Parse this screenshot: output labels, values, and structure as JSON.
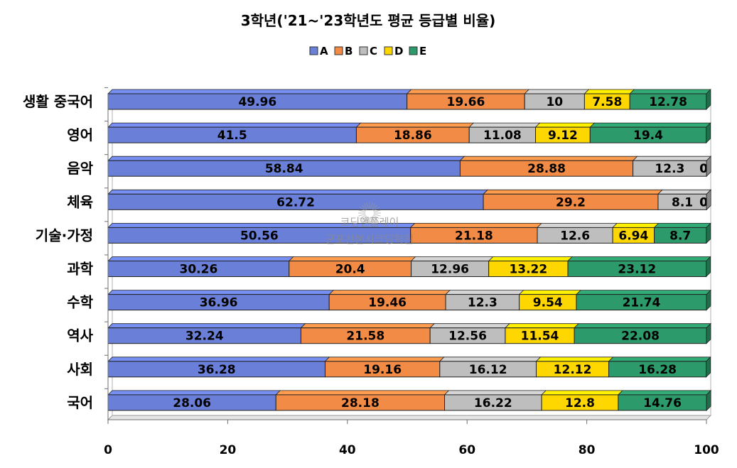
{
  "chart_data": {
    "type": "bar",
    "orientation": "horizontal",
    "stacked": true,
    "title": "3학년('21~'23학년도 평균 등급별 비율)",
    "xlabel": "",
    "ylabel": "",
    "xlim": [
      0,
      100
    ],
    "xticks": [
      0,
      20,
      40,
      60,
      80,
      100
    ],
    "grid": false,
    "legend_position": "top",
    "categories": [
      "생활 중국어",
      "영어",
      "음악",
      "체육",
      "기술·가정",
      "과학",
      "수학",
      "역사",
      "사회",
      "국어"
    ],
    "series": [
      {
        "name": "A",
        "color": "#6a80d8",
        "values": [
          49.96,
          41.5,
          58.84,
          62.72,
          50.56,
          30.26,
          36.96,
          32.24,
          36.28,
          28.06
        ]
      },
      {
        "name": "B",
        "color": "#f28b45",
        "values": [
          19.66,
          18.86,
          28.88,
          29.2,
          21.18,
          20.4,
          19.46,
          21.58,
          19.16,
          28.18
        ]
      },
      {
        "name": "C",
        "color": "#bebebe",
        "values": [
          10,
          11.08,
          12.3,
          8.1,
          12.6,
          12.96,
          12.3,
          12.56,
          16.12,
          16.22
        ]
      },
      {
        "name": "D",
        "color": "#ffd700",
        "values": [
          7.58,
          9.12,
          0,
          0,
          6.94,
          13.22,
          9.54,
          11.54,
          12.12,
          12.8
        ]
      },
      {
        "name": "E",
        "color": "#2c9a6a",
        "values": [
          12.78,
          19.4,
          0,
          0,
          8.7,
          23.12,
          21.74,
          22.08,
          16.28,
          14.76
        ]
      }
    ]
  },
  "watermark": {
    "line1": "코딩앤플레이",
    "line2": "군포산본시코딩학원"
  }
}
